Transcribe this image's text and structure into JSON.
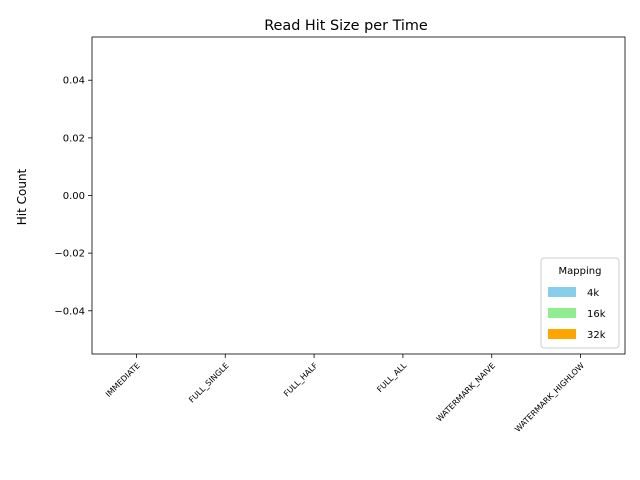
{
  "chart_data": {
    "type": "bar",
    "title": "Read Hit Size per Time",
    "xlabel": "",
    "ylabel": "Hit Count",
    "categories": [
      "IMMEDIATE",
      "FULL_SINGLE",
      "FULL_HALF",
      "FULL_ALL",
      "WATERMARK_NAIVE",
      "WATERMARK_HIGHLOW"
    ],
    "ylim": [
      -0.055,
      0.055
    ],
    "yticks": [
      -0.04,
      -0.02,
      0.0,
      0.02,
      0.04
    ],
    "ytick_labels": [
      "−0.04",
      "−0.02",
      "0.00",
      "0.02",
      "0.04"
    ],
    "series": [
      {
        "name": "4k",
        "color": "#87ceeb",
        "values": [
          0,
          0,
          0,
          0,
          0,
          0
        ]
      },
      {
        "name": "16k",
        "color": "#90ee90",
        "values": [
          0,
          0,
          0,
          0,
          0,
          0
        ]
      },
      {
        "name": "32k",
        "color": "#ffa500",
        "values": [
          0,
          0,
          0,
          0,
          0,
          0
        ]
      }
    ],
    "legend": {
      "title": "Mapping",
      "placement": "lower-right"
    },
    "grid": false
  }
}
